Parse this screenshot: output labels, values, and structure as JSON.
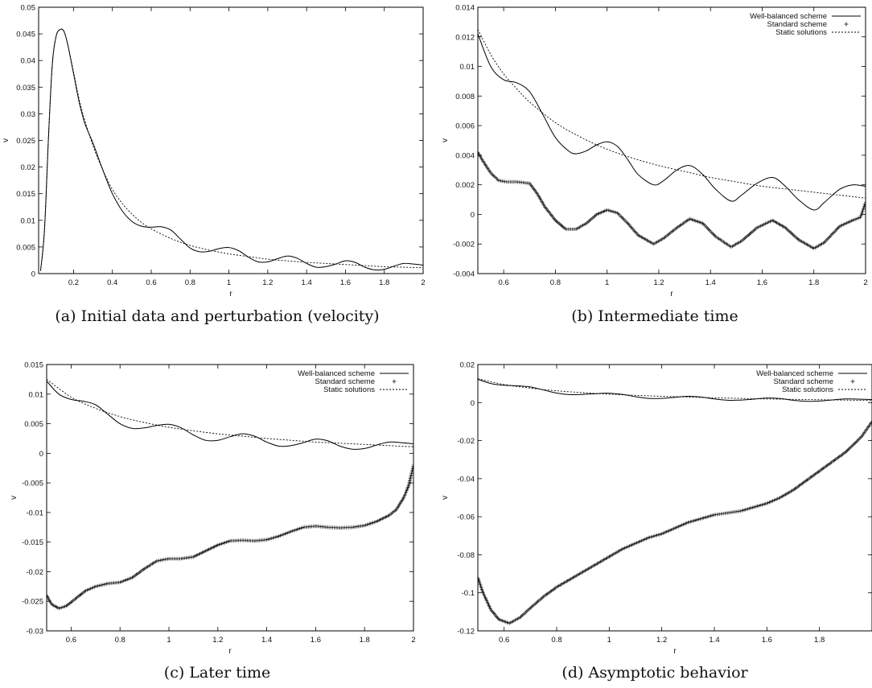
{
  "chart_data": [
    {
      "type": "line",
      "caption": "(a) Initial data and perturbation (velocity)",
      "xlabel": "r",
      "ylabel": "v",
      "xlim": [
        0.02,
        2
      ],
      "ylim": [
        0,
        0.05
      ],
      "xticks": [
        "0.2",
        "0.4",
        "0.6",
        "0.8",
        "1",
        "1.2",
        "1.4",
        "1.6",
        "1.8",
        "2"
      ],
      "yticks": [
        "0",
        "0.005",
        "0.01",
        "0.015",
        "0.02",
        "0.025",
        "0.03",
        "0.035",
        "0.04",
        "0.045",
        "0.05"
      ],
      "legend": [],
      "series": [
        {
          "style": "solid",
          "x": [
            0.03,
            0.05,
            0.07,
            0.09,
            0.11,
            0.13,
            0.15,
            0.17,
            0.2,
            0.23,
            0.26,
            0.3,
            0.35,
            0.4,
            0.45,
            0.5,
            0.55,
            0.6,
            0.65,
            0.7,
            0.75,
            0.8,
            0.85,
            0.9,
            0.95,
            1.0,
            1.05,
            1.1,
            1.15,
            1.2,
            1.25,
            1.3,
            1.35,
            1.4,
            1.45,
            1.5,
            1.55,
            1.6,
            1.65,
            1.7,
            1.75,
            1.8,
            1.85,
            1.9,
            1.95,
            2.0
          ],
          "y": [
            0.0005,
            0.008,
            0.025,
            0.039,
            0.0445,
            0.0458,
            0.0455,
            0.043,
            0.0375,
            0.032,
            0.028,
            0.0245,
            0.0195,
            0.015,
            0.0118,
            0.0098,
            0.0089,
            0.0087,
            0.0088,
            0.0082,
            0.0065,
            0.0048,
            0.0041,
            0.0042,
            0.0047,
            0.0049,
            0.0043,
            0.0031,
            0.0022,
            0.0022,
            0.0028,
            0.0033,
            0.0029,
            0.0019,
            0.0012,
            0.0013,
            0.0018,
            0.0024,
            0.0021,
            0.0012,
            0.0007,
            0.0008,
            0.0014,
            0.0019,
            0.0018,
            0.0016
          ]
        },
        {
          "style": "dotted",
          "x": [
            0.03,
            0.05,
            0.07,
            0.09,
            0.11,
            0.13,
            0.15,
            0.17,
            0.2,
            0.23,
            0.26,
            0.3,
            0.35,
            0.4,
            0.45,
            0.5,
            0.55,
            0.6,
            0.7,
            0.8,
            0.9,
            1.0,
            1.1,
            1.2,
            1.3,
            1.4,
            1.5,
            1.6,
            1.7,
            1.8,
            1.9,
            2.0
          ],
          "y": [
            0.0005,
            0.008,
            0.025,
            0.039,
            0.0445,
            0.0458,
            0.0455,
            0.043,
            0.0378,
            0.0325,
            0.0285,
            0.024,
            0.0195,
            0.0158,
            0.0132,
            0.0112,
            0.0096,
            0.0084,
            0.0066,
            0.0053,
            0.0044,
            0.0037,
            0.0032,
            0.0027,
            0.0024,
            0.0021,
            0.0019,
            0.0017,
            0.0015,
            0.0013,
            0.0012,
            0.0011
          ]
        }
      ]
    },
    {
      "type": "line",
      "caption": "(b) Intermediate time",
      "xlabel": "r",
      "ylabel": "v",
      "xlim": [
        0.5,
        2
      ],
      "ylim": [
        -0.004,
        0.014
      ],
      "xticks": [
        "0.6",
        "0.8",
        "1",
        "1.2",
        "1.4",
        "1.6",
        "1.8",
        "2"
      ],
      "yticks": [
        "-0.004",
        "-0.002",
        "0",
        "0.002",
        "0.004",
        "0.006",
        "0.008",
        "0.01",
        "0.012",
        "0.014"
      ],
      "legend": [
        "Well-balanced scheme",
        "Standard scheme",
        "Static solutions"
      ],
      "series": [
        {
          "name": "Well-balanced scheme",
          "style": "solid",
          "x": [
            0.5,
            0.55,
            0.6,
            0.65,
            0.7,
            0.75,
            0.8,
            0.85,
            0.88,
            0.92,
            0.96,
            1.0,
            1.04,
            1.08,
            1.12,
            1.18,
            1.22,
            1.27,
            1.32,
            1.37,
            1.42,
            1.48,
            1.52,
            1.58,
            1.64,
            1.69,
            1.74,
            1.8,
            1.84,
            1.9,
            1.95,
            2.0
          ],
          "y": [
            0.0122,
            0.01,
            0.0091,
            0.0089,
            0.0083,
            0.0068,
            0.0052,
            0.0043,
            0.0041,
            0.0043,
            0.0047,
            0.0049,
            0.0046,
            0.0037,
            0.0027,
            0.002,
            0.0023,
            0.003,
            0.0033,
            0.0027,
            0.0017,
            0.0009,
            0.0013,
            0.0021,
            0.0025,
            0.0019,
            0.001,
            0.0003,
            0.0008,
            0.0017,
            0.002,
            0.0019
          ]
        },
        {
          "name": "Standard scheme",
          "style": "plus",
          "x": [
            0.5,
            0.52,
            0.55,
            0.58,
            0.61,
            0.65,
            0.7,
            0.73,
            0.76,
            0.8,
            0.84,
            0.88,
            0.92,
            0.96,
            1.0,
            1.04,
            1.08,
            1.12,
            1.18,
            1.22,
            1.27,
            1.32,
            1.37,
            1.42,
            1.48,
            1.52,
            1.58,
            1.64,
            1.69,
            1.74,
            1.8,
            1.84,
            1.9,
            1.95,
            1.98,
            2.0
          ],
          "y": [
            0.0042,
            0.0036,
            0.0028,
            0.0023,
            0.0022,
            0.0022,
            0.0021,
            0.0014,
            0.0005,
            -0.0004,
            -0.001,
            -0.001,
            -0.0006,
            0.0,
            0.0003,
            0.0001,
            -0.0006,
            -0.0014,
            -0.002,
            -0.0016,
            -0.0009,
            -0.0003,
            -0.0006,
            -0.0015,
            -0.0022,
            -0.0018,
            -0.0009,
            -0.0004,
            -0.0009,
            -0.0017,
            -0.0023,
            -0.0019,
            -0.0008,
            -0.0004,
            -0.0002,
            0.0008
          ]
        },
        {
          "name": "Static solutions",
          "style": "dotted",
          "x": [
            0.5,
            0.55,
            0.6,
            0.65,
            0.7,
            0.8,
            0.9,
            1.0,
            1.1,
            1.2,
            1.3,
            1.4,
            1.5,
            1.6,
            1.7,
            1.8,
            1.9,
            2.0
          ],
          "y": [
            0.0125,
            0.0108,
            0.0095,
            0.0085,
            0.0076,
            0.0062,
            0.0052,
            0.0044,
            0.0038,
            0.0033,
            0.0029,
            0.0025,
            0.0022,
            0.0019,
            0.0017,
            0.0015,
            0.0013,
            0.0011
          ]
        }
      ]
    },
    {
      "type": "line",
      "caption": "(c) Later time",
      "xlabel": "r",
      "ylabel": "v",
      "xlim": [
        0.5,
        2
      ],
      "ylim": [
        -0.03,
        0.015
      ],
      "xticks": [
        "0.6",
        "0.8",
        "1",
        "1.2",
        "1.4",
        "1.6",
        "1.8",
        "2"
      ],
      "yticks": [
        "-0.03",
        "-0.025",
        "-0.02",
        "-0.015",
        "-0.01",
        "-0.005",
        "0",
        "0.005",
        "0.01",
        "0.015"
      ],
      "legend": [
        "Well-balanced scheme",
        "Standard scheme",
        "Static solutions"
      ],
      "series": [
        {
          "name": "Well-balanced scheme",
          "style": "solid",
          "x": [
            0.5,
            0.55,
            0.6,
            0.65,
            0.7,
            0.75,
            0.8,
            0.85,
            0.9,
            0.95,
            1.0,
            1.05,
            1.1,
            1.15,
            1.2,
            1.25,
            1.3,
            1.35,
            1.4,
            1.45,
            1.5,
            1.55,
            1.6,
            1.65,
            1.7,
            1.75,
            1.8,
            1.85,
            1.9,
            1.95,
            2.0
          ],
          "y": [
            0.0122,
            0.01,
            0.0091,
            0.0088,
            0.0082,
            0.0066,
            0.005,
            0.0042,
            0.0043,
            0.0047,
            0.0049,
            0.0043,
            0.0031,
            0.0022,
            0.0022,
            0.0028,
            0.0033,
            0.0029,
            0.0019,
            0.0012,
            0.0013,
            0.0018,
            0.0024,
            0.0021,
            0.0012,
            0.0007,
            0.0008,
            0.0014,
            0.0019,
            0.0018,
            0.0016
          ]
        },
        {
          "name": "Standard scheme",
          "style": "plus",
          "x": [
            0.5,
            0.52,
            0.55,
            0.58,
            0.62,
            0.66,
            0.7,
            0.75,
            0.8,
            0.85,
            0.9,
            0.95,
            1.0,
            1.05,
            1.1,
            1.15,
            1.2,
            1.25,
            1.3,
            1.35,
            1.4,
            1.45,
            1.5,
            1.55,
            1.6,
            1.65,
            1.7,
            1.75,
            1.8,
            1.85,
            1.9,
            1.93,
            1.96,
            1.98,
            2.0
          ],
          "y": [
            -0.024,
            -0.0255,
            -0.0262,
            -0.0258,
            -0.0245,
            -0.0232,
            -0.0225,
            -0.022,
            -0.0218,
            -0.021,
            -0.0195,
            -0.0182,
            -0.0178,
            -0.0178,
            -0.0175,
            -0.0165,
            -0.0155,
            -0.0148,
            -0.0147,
            -0.0148,
            -0.0146,
            -0.014,
            -0.0132,
            -0.0125,
            -0.0123,
            -0.0125,
            -0.0126,
            -0.0125,
            -0.0122,
            -0.0115,
            -0.0105,
            -0.0095,
            -0.0075,
            -0.0055,
            -0.002
          ]
        },
        {
          "name": "Static solutions",
          "style": "dotted",
          "x": [
            0.5,
            0.6,
            0.7,
            0.8,
            0.9,
            1.0,
            1.1,
            1.2,
            1.3,
            1.4,
            1.5,
            1.6,
            1.7,
            1.8,
            1.9,
            2.0
          ],
          "y": [
            0.0125,
            0.0095,
            0.0076,
            0.0062,
            0.0052,
            0.0044,
            0.0038,
            0.0033,
            0.0029,
            0.0025,
            0.0022,
            0.0019,
            0.0017,
            0.0015,
            0.0013,
            0.0011
          ]
        }
      ]
    },
    {
      "type": "line",
      "caption": "(d) Asymptotic behavior",
      "xlabel": "r",
      "ylabel": "v",
      "xlim": [
        0.5,
        2
      ],
      "ylim": [
        -0.12,
        0.02
      ],
      "xticks": [
        "0.6",
        "0.8",
        "1",
        "1.2",
        "1.4",
        "1.6",
        "1.8"
      ],
      "yticks": [
        "-0.12",
        "-0.1",
        "-0.08",
        "-0.06",
        "-0.04",
        "-0.02",
        "0",
        "0.02"
      ],
      "legend": [
        "Well-balanced scheme",
        "Standard scheme",
        "Static solutions"
      ],
      "series": [
        {
          "name": "Well-balanced scheme",
          "style": "solid",
          "x": [
            0.5,
            0.55,
            0.6,
            0.65,
            0.7,
            0.75,
            0.8,
            0.85,
            0.9,
            0.95,
            1.0,
            1.05,
            1.1,
            1.15,
            1.2,
            1.25,
            1.3,
            1.35,
            1.4,
            1.45,
            1.5,
            1.55,
            1.6,
            1.65,
            1.7,
            1.75,
            1.8,
            1.85,
            1.9,
            1.95,
            2.0
          ],
          "y": [
            0.0122,
            0.01,
            0.0091,
            0.0088,
            0.0082,
            0.0066,
            0.005,
            0.0042,
            0.0043,
            0.0047,
            0.0049,
            0.0043,
            0.0031,
            0.0022,
            0.0022,
            0.0028,
            0.0033,
            0.0029,
            0.0019,
            0.0012,
            0.0013,
            0.0018,
            0.0024,
            0.0021,
            0.0012,
            0.0007,
            0.0008,
            0.0014,
            0.0019,
            0.0018,
            0.0016
          ]
        },
        {
          "name": "Standard scheme",
          "style": "plus",
          "x": [
            0.5,
            0.52,
            0.55,
            0.58,
            0.62,
            0.66,
            0.7,
            0.75,
            0.8,
            0.85,
            0.9,
            0.95,
            1.0,
            1.05,
            1.1,
            1.15,
            1.2,
            1.25,
            1.3,
            1.35,
            1.4,
            1.45,
            1.5,
            1.55,
            1.6,
            1.65,
            1.7,
            1.75,
            1.8,
            1.85,
            1.9,
            1.93,
            1.96,
            1.98,
            2.0
          ],
          "y": [
            -0.092,
            -0.1,
            -0.109,
            -0.114,
            -0.116,
            -0.113,
            -0.108,
            -0.102,
            -0.097,
            -0.093,
            -0.089,
            -0.085,
            -0.081,
            -0.077,
            -0.074,
            -0.071,
            -0.069,
            -0.066,
            -0.063,
            -0.061,
            -0.059,
            -0.058,
            -0.057,
            -0.055,
            -0.053,
            -0.05,
            -0.046,
            -0.041,
            -0.036,
            -0.031,
            -0.026,
            -0.022,
            -0.018,
            -0.014,
            -0.01
          ]
        },
        {
          "name": "Static solutions",
          "style": "dotted",
          "x": [
            0.5,
            0.6,
            0.7,
            0.8,
            0.9,
            1.0,
            1.1,
            1.2,
            1.3,
            1.4,
            1.5,
            1.6,
            1.7,
            1.8,
            1.9,
            2.0
          ],
          "y": [
            0.0125,
            0.0095,
            0.0076,
            0.0062,
            0.0052,
            0.0044,
            0.0038,
            0.0033,
            0.0029,
            0.0025,
            0.0022,
            0.0019,
            0.0017,
            0.0015,
            0.0013,
            0.0011
          ]
        }
      ]
    }
  ]
}
